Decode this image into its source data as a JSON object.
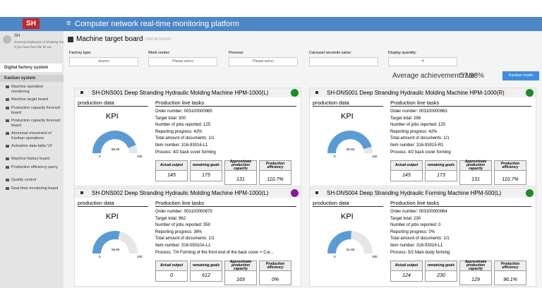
{
  "header": {
    "logo": "SH",
    "title": "Computer network real-time monitoring platform"
  },
  "sidebar": {
    "user": "SH",
    "user_lines": [
      "General employees of Shiwang Siusan",
      "If you have free idle for tax"
    ],
    "system": "Digital factory system",
    "group": "Kanban system",
    "items": [
      "Machine operation monitoring",
      "Machine target board",
      "Production capacity forecast board",
      "Production capacity forecast board",
      "Abnormal movement of Kanban operations",
      "Activation data table V2",
      "Machine history board",
      "Production efficiency query",
      "Quality control",
      "Real-time monitoring board"
    ]
  },
  "page": {
    "title": "Machine target board",
    "subtitle": "DIGITALBOARD",
    "filters": [
      {
        "label": "Factory type:",
        "value": "dourən"
      },
      {
        "label": "Work center:",
        "value": "Please select"
      },
      {
        "label": "Process:",
        "value": "Please select"
      },
      {
        "label": "Carousel seconds value:",
        "value": ""
      },
      {
        "label": "Display quantity:",
        "value": "4"
      }
    ],
    "average_label": "Average achievement rate:",
    "average": "57.98%",
    "button": "Kanban mode"
  },
  "card_labels": {
    "data": "production data",
    "kpi": "KPI",
    "tasks": "Production line tasks",
    "min": "0",
    "max": "100",
    "columns": [
      "Actual output",
      "remaining goals",
      "Approximate production capacity",
      "Production efficiency"
    ]
  },
  "cards": [
    {
      "title": "SH-DNS001 Deep Stranding Hydraulic Molding Machine HPM-1000(L)",
      "status_color": "#1a8a2a",
      "gauge": "88.00",
      "tasks": [
        "Order number: 003100000965",
        "Target total: 300",
        "Number of jobs reported: 125",
        "Reporting progress: 42%",
        "Total amount of documents: 1/1",
        "Item number: 316-93016-L1",
        "Process: 4/2 back cover forming"
      ],
      "stats": [
        "145",
        "175",
        "131",
        "110.7%"
      ]
    },
    {
      "title": "SH-DNS001 Deep Stranding Hydraulic Molding Machine HPM-1000(R)",
      "status_color": "#1a8a2a",
      "gauge": "90.65",
      "tasks": [
        "Order number: 003100000963",
        "Target total: 298",
        "Number of jobs reported: 125",
        "Reporting progress: 42%",
        "Total amount of documents: 1/1",
        "Item number: 316-93015-R1",
        "Process: 4/2 back cover forming"
      ],
      "stats": [
        "145",
        "173",
        "131",
        "110.7%"
      ]
    },
    {
      "title": "SH-DNS002 Deep Stranding Hydraulic Molding Machine HPM-1000(L)",
      "status_color": "#8a1a9a",
      "gauge": "56.89",
      "tasks": [
        "Order number: 003100000879",
        "Target total: 962",
        "Number of jobs reported: 350",
        "Reporting progress: 36%",
        "Total amount of documents: 1/1",
        "Item number: 316-05010A-L1",
        "Process: 7/4 Forming of the front end of the back cover + Cur..."
      ],
      "stats": [
        "0",
        "612",
        "169",
        "0%"
      ]
    },
    {
      "title": "SH-DNS004 Deep Stranding Hydraulic Forming Machine HPM-500(L)",
      "status_color": "#1a8a2a",
      "gauge": "51.86",
      "tasks": [
        "Order number: 003100000964",
        "Target total: 230",
        "Number of jobs reported: 0",
        "Reporting progress: 0%",
        "Total amount of documents: 1/1",
        "Item number: 316-93016-L1",
        "Process: 5/2 Main body forming"
      ],
      "stats": [
        "124",
        "230",
        "129",
        "96.1%"
      ]
    }
  ]
}
